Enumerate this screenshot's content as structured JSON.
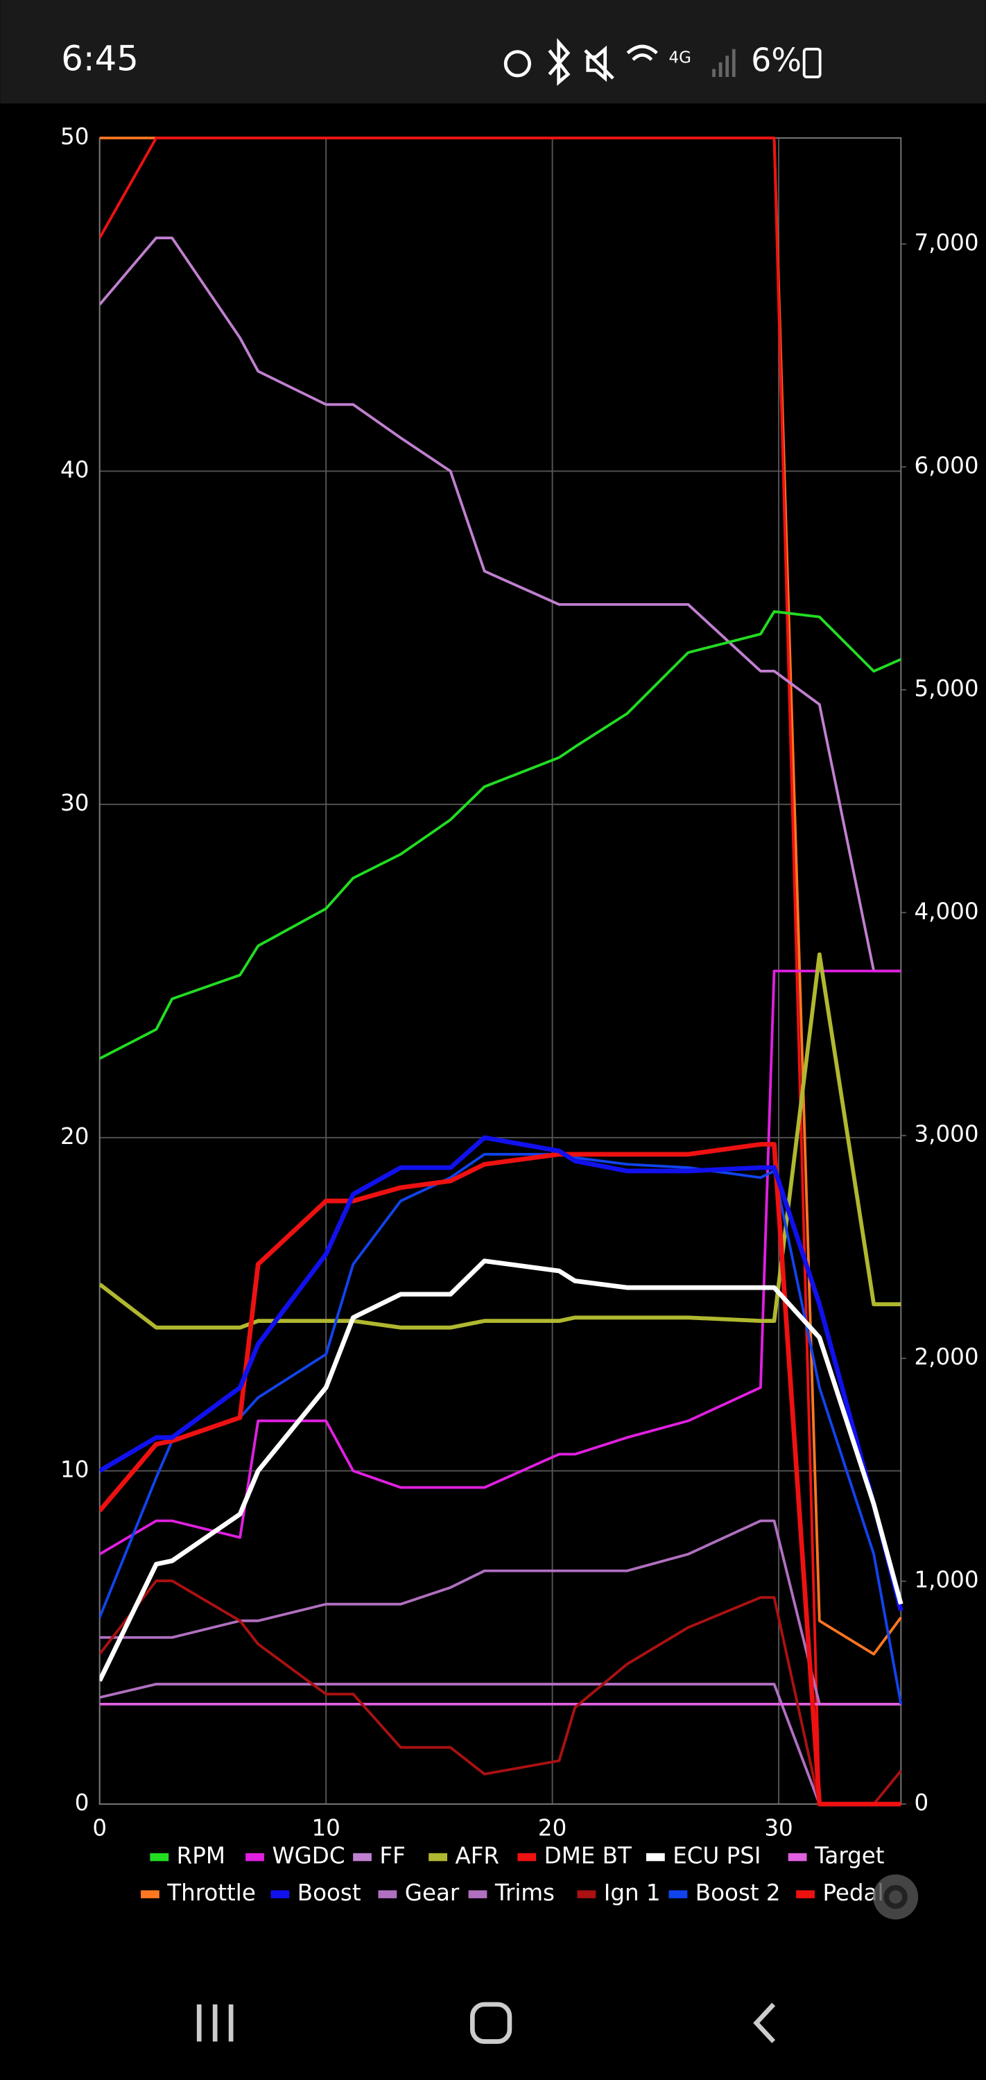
{
  "status_bar": {
    "time": "6:45",
    "battery": "6%"
  },
  "chart_data": {
    "type": "line",
    "legend": "bottom",
    "grid": true,
    "x": [
      0,
      2.5,
      3.2,
      6.2,
      7,
      10,
      11.2,
      13.3,
      15.5,
      17,
      20.3,
      21,
      23.3,
      26,
      29.2,
      29.8,
      31.8,
      34.2,
      35.4
    ],
    "xlim": [
      0,
      35.4
    ],
    "xticks": [
      0,
      10,
      20,
      30
    ],
    "ylim": [
      0,
      50
    ],
    "yticks": [
      0,
      10,
      20,
      30,
      40,
      50
    ],
    "y2lim": [
      0,
      7476
    ],
    "y2ticks": [
      0,
      {
        "value": 1000,
        "label": "1,000"
      },
      {
        "value": 2000,
        "label": "2,000"
      },
      {
        "value": 3000,
        "label": "3,000"
      },
      {
        "value": 4000,
        "label": "4,000"
      },
      {
        "value": 5000,
        "label": "5,000"
      },
      {
        "value": 6000,
        "label": "6,000"
      },
      {
        "value": 7000,
        "label": "7,000"
      }
    ],
    "series": [
      {
        "name": "Throttle",
        "color": "#ff7722",
        "width": 2,
        "values": [
          50,
          50,
          50,
          50,
          50,
          50,
          50,
          50,
          50,
          50,
          50,
          50,
          50,
          50,
          50,
          50,
          5.5,
          4.5,
          5.6
        ]
      },
      {
        "name": "Pedal",
        "color": "#ee1111",
        "width": 2,
        "values": [
          47,
          50,
          50,
          50,
          50,
          50,
          50,
          50,
          50,
          50,
          50,
          50,
          50,
          50,
          50,
          50,
          0,
          0,
          0
        ]
      },
      {
        "name": "FF",
        "color": "#c080d0",
        "width": 2,
        "values": [
          45,
          47,
          47,
          44,
          43,
          42,
          42,
          41,
          40,
          37,
          36,
          36,
          36,
          36,
          34,
          34,
          33,
          25,
          25
        ]
      },
      {
        "name": "RPM",
        "color": "#22dd22",
        "width": 2,
        "axis": "y2",
        "values": [
          3345,
          3476,
          3613,
          3720,
          3851,
          4018,
          4155,
          4262,
          4417,
          4565,
          4696,
          4744,
          4893,
          5167,
          5250,
          5351,
          5327,
          5083,
          5137
        ]
      },
      {
        "name": "Gear",
        "color": "#b070c0",
        "width": 2,
        "values": [
          5,
          5,
          5,
          5.5,
          5.5,
          6,
          6,
          6,
          6.5,
          7,
          7,
          7,
          7,
          7.5,
          8.5,
          8.5,
          3,
          3,
          3
        ]
      },
      {
        "name": "Trims",
        "color": "#b070c0",
        "width": 2,
        "values": [
          3.2,
          3.6,
          3.6,
          3.6,
          3.6,
          3.6,
          3.6,
          3.6,
          3.6,
          3.6,
          3.6,
          3.6,
          3.6,
          3.6,
          3.6,
          3.6,
          0,
          0,
          0
        ]
      },
      {
        "name": "Target",
        "color": "#e060e0",
        "width": 2,
        "values": [
          3,
          3,
          3,
          3,
          3,
          3,
          3,
          3,
          3,
          3,
          3,
          3,
          3,
          3,
          3,
          3,
          3,
          3,
          3
        ]
      },
      {
        "name": "WGDC",
        "color": "#e020e0",
        "width": 2,
        "values": [
          7.5,
          8.5,
          8.5,
          8,
          11.5,
          11.5,
          10,
          9.5,
          9.5,
          9.5,
          10.5,
          10.5,
          11,
          11.5,
          12.5,
          25,
          25,
          25,
          25
        ]
      },
      {
        "name": "Ign 1",
        "color": "#aa1111",
        "width": 2,
        "values": [
          4.5,
          6.7,
          6.7,
          5.5,
          4.8,
          3.3,
          3.3,
          1.7,
          1.7,
          0.9,
          1.3,
          2.9,
          4.2,
          5.3,
          6.2,
          6.2,
          0,
          0,
          1
        ]
      },
      {
        "name": "AFR",
        "color": "#b0b830",
        "width": 3,
        "values": [
          15.6,
          14.3,
          14.3,
          14.3,
          14.5,
          14.5,
          14.5,
          14.3,
          14.3,
          14.5,
          14.5,
          14.6,
          14.6,
          14.6,
          14.5,
          14.5,
          25.5,
          15,
          15
        ]
      },
      {
        "name": "Boost 2",
        "color": "#1144ee",
        "width": 2,
        "values": [
          5.6,
          9.8,
          10.9,
          11.6,
          12.2,
          13.5,
          16.2,
          18.1,
          18.8,
          19.5,
          19.5,
          19.4,
          19.2,
          19.1,
          18.8,
          19,
          12.5,
          7.5,
          3
        ]
      },
      {
        "name": "DME BT",
        "color": "#ee1111",
        "width": 3.5,
        "values": [
          8.8,
          10.8,
          10.9,
          11.6,
          16.2,
          18.1,
          18.1,
          18.5,
          18.7,
          19.2,
          19.5,
          19.5,
          19.5,
          19.5,
          19.8,
          19.8,
          0,
          0,
          0
        ]
      },
      {
        "name": "Boost",
        "color": "#1111ee",
        "width": 3.5,
        "values": [
          10,
          11,
          11,
          12.5,
          13.8,
          16.5,
          18.3,
          19.1,
          19.1,
          20,
          19.6,
          19.3,
          19,
          19,
          19.1,
          19.1,
          15,
          9,
          5.8
        ]
      },
      {
        "name": "ECU PSI",
        "color": "#ffffff",
        "width": 3.5,
        "values": [
          3.7,
          7.2,
          7.3,
          8.7,
          10,
          12.5,
          14.6,
          15.3,
          15.3,
          16.3,
          16,
          15.7,
          15.5,
          15.5,
          15.5,
          15.5,
          14,
          9,
          6
        ]
      }
    ]
  }
}
